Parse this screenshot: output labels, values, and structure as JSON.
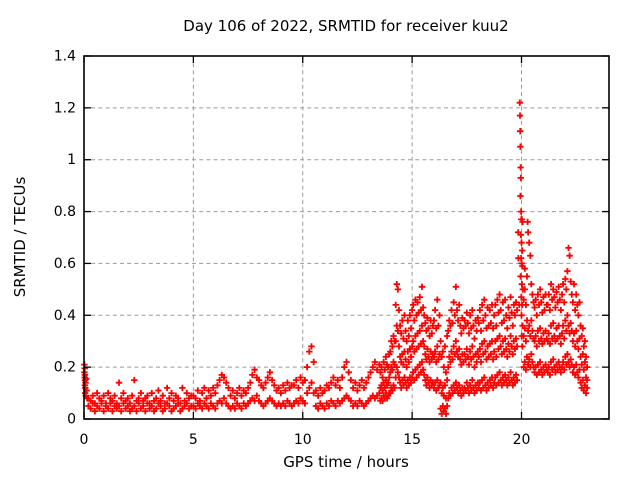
{
  "chart_data": {
    "type": "scatter",
    "title": "Day 106 of 2022, SRMTID for receiver kuu2",
    "xlabel": "GPS time / hours",
    "ylabel": "SRMTID / TECUs",
    "xlim": [
      0,
      24
    ],
    "ylim": [
      0,
      1.4
    ],
    "xticks": {
      "values": [
        0,
        5,
        10,
        15,
        20
      ],
      "labels": [
        "0",
        "5",
        "10",
        "15",
        "20"
      ]
    },
    "yticks": {
      "values": [
        0,
        0.2,
        0.4,
        0.6,
        0.8,
        1.0,
        1.2,
        1.4
      ],
      "labels": [
        "0",
        "0.2",
        "0.4",
        "0.6",
        "0.8",
        "1",
        "1.2",
        "1.4"
      ]
    },
    "grid": {
      "show": true,
      "color": "#9b9b9b",
      "style": "dashed"
    },
    "marker": {
      "shape": "plus",
      "color": "#ff0000",
      "size": 7
    },
    "background": "#ffffff",
    "border_color": "#000000",
    "legend": "none",
    "points": [
      [
        0.02,
        0.21
      ],
      [
        0.02,
        0.18
      ],
      [
        0.03,
        0.195
      ],
      [
        0.03,
        0.16
      ],
      [
        0.04,
        0.17
      ],
      [
        0.04,
        0.13
      ],
      [
        0.05,
        0.15
      ],
      [
        0.05,
        0.1
      ],
      [
        0.06,
        0.12
      ],
      [
        0.07,
        0.14
      ],
      [
        0.08,
        0.09
      ],
      [
        0.1,
        0.155
      ],
      [
        0.12,
        0.11
      ],
      [
        0.14,
        0.08
      ],
      [
        19.85,
        0.72
      ],
      [
        19.86,
        0.62
      ],
      [
        19.9,
        0.44
      ],
      [
        19.92,
        1.22
      ],
      [
        19.93,
        1.17
      ],
      [
        19.94,
        1.11
      ],
      [
        19.95,
        1.05
      ],
      [
        19.96,
        0.97
      ],
      [
        19.97,
        0.93
      ],
      [
        19.95,
        0.86
      ],
      [
        19.98,
        0.8
      ],
      [
        19.99,
        0.77
      ],
      [
        20.02,
        0.77
      ],
      [
        20.05,
        0.76
      ],
      [
        19.97,
        0.71
      ],
      [
        20.0,
        0.68
      ],
      [
        20.03,
        0.65
      ],
      [
        19.98,
        0.62
      ],
      [
        20.01,
        0.6
      ],
      [
        20.04,
        0.59
      ],
      [
        19.96,
        0.55
      ],
      [
        20.02,
        0.52
      ],
      [
        20.06,
        0.5
      ],
      [
        19.99,
        0.47
      ],
      [
        20.03,
        0.44
      ],
      [
        20.0,
        0.4
      ],
      [
        20.05,
        0.36
      ],
      [
        20.01,
        0.32
      ],
      [
        20.04,
        0.28
      ],
      [
        20.15,
        0.58
      ],
      [
        20.28,
        0.76
      ]
    ],
    "segments": [
      {
        "t0": 0.2,
        "dt": 0.1,
        "per": 2,
        "ys": [
          0.05,
          0.08,
          0.04,
          0.07,
          0.06,
          0.09,
          0.03,
          0.06,
          0.05,
          0.1,
          0.04,
          0.08,
          0.06,
          0.07,
          0.03,
          0.09,
          0.05,
          0.06,
          0.04,
          0.1,
          0.06,
          0.08,
          0.03,
          0.07,
          0.05,
          0.09,
          0.04,
          0.06,
          0.05,
          0.14,
          0.03,
          0.08,
          0.06,
          0.1,
          0.04,
          0.07,
          0.05,
          0.08,
          0.03,
          0.06,
          0.04,
          0.09,
          0.05,
          0.15,
          0.03,
          0.07,
          0.06,
          0.08,
          0.04,
          0.1,
          0.05,
          0.07,
          0.03,
          0.08,
          0.06,
          0.09,
          0.04,
          0.06,
          0.05,
          0.1,
          0.03,
          0.07,
          0.04,
          0.08,
          0.06,
          0.11,
          0.05,
          0.07,
          0.03,
          0.09,
          0.04,
          0.06,
          0.06,
          0.12,
          0.05,
          0.08,
          0.03,
          0.1,
          0.04,
          0.07,
          0.05,
          0.09,
          0.06,
          0.08,
          0.03,
          0.06,
          0.04,
          0.12,
          0.05,
          0.07,
          0.06,
          0.1,
          0.04,
          0.08,
          0.05,
          0.09
        ]
      },
      {
        "t0": 5.0,
        "dt": 0.1,
        "per": 2,
        "ys": [
          0.05,
          0.09,
          0.04,
          0.08,
          0.06,
          0.11,
          0.05,
          0.07,
          0.04,
          0.1,
          0.06,
          0.12,
          0.05,
          0.08,
          0.04,
          0.11,
          0.06,
          0.09,
          0.05,
          0.12,
          0.04,
          0.1,
          0.06,
          0.13,
          0.07,
          0.15,
          0.06,
          0.17,
          0.08,
          0.16,
          0.06,
          0.14,
          0.05,
          0.12,
          0.04,
          0.09,
          0.05,
          0.11,
          0.04,
          0.08,
          0.06,
          0.1,
          0.05,
          0.12,
          0.04,
          0.09,
          0.06,
          0.11,
          0.05,
          0.1,
          0.06,
          0.12,
          0.07,
          0.14,
          0.08,
          0.17,
          0.07,
          0.19,
          0.09,
          0.16,
          0.07,
          0.15,
          0.06,
          0.13,
          0.05,
          0.12,
          0.06,
          0.14,
          0.07,
          0.16,
          0.08,
          0.18,
          0.07,
          0.15,
          0.06,
          0.13,
          0.05,
          0.11,
          0.06,
          0.12,
          0.05,
          0.1,
          0.06,
          0.13,
          0.05,
          0.11,
          0.07,
          0.14,
          0.06,
          0.12,
          0.05,
          0.13
        ]
      },
      {
        "t0": 9.6,
        "dt": 0.1,
        "per": 2,
        "ys": [
          0.06,
          0.13,
          0.07,
          0.15,
          0.06,
          0.12,
          0.08,
          0.16,
          0.07,
          0.14,
          0.06,
          0.15,
          0.1,
          0.2,
          0.12,
          0.26,
          0.14,
          0.28,
          0.1,
          0.22,
          0.05,
          0.11,
          0.04,
          0.09,
          0.06,
          0.12,
          0.05,
          0.1,
          0.04,
          0.11,
          0.06,
          0.13,
          0.05,
          0.12,
          0.07,
          0.14,
          0.06,
          0.16,
          0.05,
          0.13,
          0.07,
          0.15,
          0.06,
          0.12,
          0.07,
          0.16,
          0.08,
          0.2,
          0.09,
          0.22,
          0.08,
          0.18,
          0.07,
          0.15,
          0.05,
          0.12,
          0.06,
          0.14,
          0.05,
          0.11,
          0.07,
          0.13,
          0.06,
          0.15,
          0.05,
          0.12,
          0.06,
          0.14,
          0.07,
          0.16,
          0.08,
          0.18,
          0.09,
          0.2,
          0.08,
          0.22,
          0.09,
          0.19,
          0.1,
          0.21
        ]
      },
      {
        "t0": 13.55,
        "dt": 0.05,
        "per": 3,
        "ys": [
          0.07,
          0.12,
          0.18,
          0.08,
          0.13,
          0.2,
          0.07,
          0.11,
          0.16,
          0.09,
          0.14,
          0.22,
          0.08,
          0.12,
          0.19,
          0.1,
          0.15,
          0.24,
          0.08,
          0.13,
          0.21,
          0.09,
          0.14,
          0.2,
          0.1,
          0.16,
          0.25,
          0.1,
          0.18,
          0.26,
          0.12,
          0.2,
          0.3,
          0.11,
          0.19,
          0.28,
          0.13,
          0.22,
          0.32,
          0.12,
          0.21,
          0.3,
          0.16,
          0.3,
          0.44,
          0.2,
          0.36,
          0.52,
          0.18,
          0.34,
          0.5,
          0.16,
          0.28,
          0.42,
          0.14,
          0.24,
          0.36,
          0.12,
          0.22,
          0.33,
          0.15,
          0.25,
          0.38,
          0.13,
          0.21,
          0.31,
          0.16,
          0.26,
          0.4,
          0.14,
          0.23,
          0.34,
          0.12,
          0.2,
          0.3,
          0.15,
          0.26,
          0.38,
          0.13,
          0.22,
          0.32,
          0.16,
          0.27,
          0.4,
          0.14,
          0.24,
          0.35,
          0.16,
          0.28,
          0.42,
          0.18,
          0.3,
          0.44,
          0.15,
          0.26,
          0.38,
          0.19,
          0.32,
          0.46,
          0.16,
          0.27,
          0.4,
          0.2,
          0.33,
          0.45,
          0.17,
          0.28,
          0.41,
          0.21,
          0.34,
          0.47,
          0.18,
          0.29,
          0.42,
          0.22,
          0.36,
          0.51,
          0.19,
          0.3,
          0.43,
          0.17,
          0.28,
          0.4,
          0.15,
          0.25,
          0.37,
          0.13,
          0.23,
          0.34,
          0.16,
          0.27,
          0.39,
          0.14,
          0.24,
          0.35,
          0.12,
          0.22,
          0.32,
          0.15,
          0.26,
          0.38,
          0.13,
          0.23,
          0.33,
          0.14,
          0.25,
          0.36
        ]
      },
      {
        "t0": 16.0,
        "dt": 0.05,
        "per": 3,
        "ys": [
          0.12,
          0.24,
          0.38,
          0.14,
          0.26,
          0.42,
          0.11,
          0.22,
          0.35,
          0.15,
          0.28,
          0.46,
          0.12,
          0.23,
          0.36,
          0.13,
          0.25,
          0.4,
          0.04,
          0.14,
          0.3,
          0.02,
          0.1,
          0.24,
          0.05,
          0.12,
          0.26,
          0.03,
          0.09,
          0.2,
          0.04,
          0.13,
          0.28,
          0.02,
          0.08,
          0.18,
          0.05,
          0.15,
          0.32,
          0.08,
          0.2,
          0.34,
          0.1,
          0.24,
          0.38,
          0.09,
          0.22,
          0.36,
          0.12,
          0.26,
          0.42,
          0.1,
          0.23,
          0.37,
          0.13,
          0.28,
          0.45,
          0.11,
          0.25,
          0.4,
          0.14,
          0.3,
          0.51,
          0.12,
          0.26,
          0.42,
          0.1,
          0.24,
          0.38,
          0.13,
          0.27,
          0.44,
          0.11,
          0.23,
          0.36,
          0.09,
          0.21,
          0.33,
          0.12,
          0.25,
          0.39,
          0.1,
          0.22,
          0.35,
          0.12,
          0.25,
          0.38,
          0.11,
          0.23,
          0.36,
          0.14,
          0.27,
          0.41,
          0.12,
          0.24,
          0.37,
          0.1,
          0.21,
          0.33,
          0.13,
          0.26,
          0.4,
          0.11,
          0.23,
          0.35,
          0.15,
          0.28,
          0.42,
          0.12,
          0.24,
          0.36,
          0.1,
          0.2,
          0.31,
          0.13,
          0.25,
          0.38,
          0.11,
          0.22,
          0.34,
          0.14,
          0.26,
          0.39,
          0.12,
          0.24,
          0.37,
          0.14,
          0.27,
          0.42,
          0.11,
          0.22,
          0.34,
          0.15,
          0.29,
          0.44,
          0.12,
          0.25,
          0.38,
          0.16,
          0.3,
          0.46,
          0.13,
          0.26,
          0.4,
          0.11,
          0.23,
          0.35,
          0.14,
          0.28,
          0.43,
          0.12,
          0.24,
          0.36,
          0.15,
          0.29,
          0.42,
          0.13,
          0.25,
          0.37,
          0.16,
          0.3,
          0.44,
          0.12,
          0.23,
          0.35,
          0.14,
          0.26,
          0.4,
          0.16,
          0.3,
          0.44,
          0.13,
          0.24,
          0.36,
          0.17,
          0.31,
          0.46,
          0.14,
          0.27,
          0.41,
          0.18,
          0.32,
          0.48,
          0.15,
          0.28,
          0.42,
          0.13,
          0.25,
          0.37,
          0.16,
          0.3,
          0.45,
          0.14,
          0.26,
          0.38,
          0.17,
          0.31,
          0.46,
          0.15,
          0.27,
          0.4,
          0.13,
          0.24,
          0.35,
          0.16,
          0.29,
          0.43,
          0.14,
          0.26,
          0.39,
          0.18,
          0.32,
          0.47,
          0.15,
          0.28,
          0.41,
          0.13,
          0.25,
          0.36,
          0.16,
          0.3,
          0.44,
          0.14,
          0.27,
          0.4,
          0.17,
          0.31,
          0.45,
          0.15,
          0.28,
          0.42
        ]
      },
      {
        "t0": 20.1,
        "dt": 0.05,
        "per": 3,
        "ys": [
          0.2,
          0.32,
          0.46,
          0.22,
          0.35,
          0.5,
          0.19,
          0.3,
          0.44,
          0.24,
          0.38,
          0.55,
          0.21,
          0.34,
          0.72,
          0.23,
          0.36,
          0.68,
          0.2,
          0.32,
          0.63,
          0.25,
          0.38,
          0.52,
          0.22,
          0.34,
          0.48,
          0.2,
          0.31,
          0.45,
          0.18,
          0.3,
          0.43,
          0.2,
          0.32,
          0.46,
          0.17,
          0.28,
          0.4,
          0.21,
          0.34,
          0.48,
          0.18,
          0.3,
          0.44,
          0.22,
          0.35,
          0.5,
          0.19,
          0.31,
          0.45,
          0.17,
          0.29,
          0.41,
          0.2,
          0.33,
          0.47,
          0.18,
          0.3,
          0.42,
          0.21,
          0.34,
          0.48,
          0.19,
          0.31,
          0.44,
          0.18,
          0.3,
          0.44,
          0.2,
          0.33,
          0.48,
          0.17,
          0.29,
          0.42,
          0.22,
          0.36,
          0.52,
          0.19,
          0.31,
          0.46,
          0.23,
          0.37,
          0.5,
          0.2,
          0.32,
          0.47,
          0.18,
          0.3,
          0.43,
          0.21,
          0.35,
          0.49,
          0.19,
          0.31,
          0.45,
          0.22,
          0.36,
          0.51,
          0.2,
          0.32,
          0.46,
          0.18,
          0.29,
          0.42,
          0.2,
          0.33,
          0.48,
          0.22,
          0.36,
          0.52,
          0.19,
          0.31,
          0.45,
          0.24,
          0.38,
          0.54,
          0.21,
          0.34,
          0.5,
          0.25,
          0.4,
          0.57,
          0.22,
          0.36,
          0.66,
          0.2,
          0.33,
          0.63,
          0.23,
          0.37,
          0.53,
          0.21,
          0.34,
          0.48,
          0.18,
          0.3,
          0.45,
          0.2,
          0.33,
          0.52,
          0.17,
          0.28,
          0.42,
          0.21,
          0.34,
          0.48,
          0.18,
          0.3,
          0.44,
          0.16,
          0.27,
          0.4,
          0.19,
          0.31,
          0.45,
          0.14,
          0.24,
          0.36,
          0.12,
          0.21,
          0.32,
          0.15,
          0.25,
          0.35,
          0.11,
          0.19,
          0.28,
          0.13,
          0.22,
          0.3,
          0.1,
          0.16,
          0.24,
          0.12,
          0.15,
          0.2
        ]
      }
    ]
  }
}
